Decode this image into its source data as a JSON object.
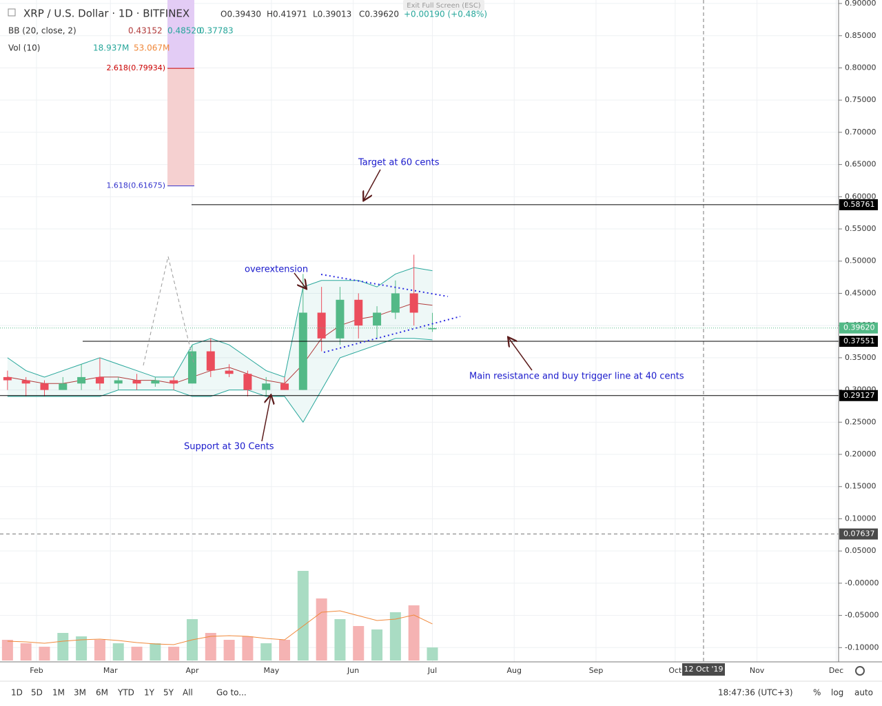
{
  "header": {
    "symbol": "XRP / U.S. Dollar · 1D · BITFINEX",
    "open": "O0.39430",
    "high": "H0.41971",
    "low": "L0.39013",
    "close": "C0.39620",
    "change": "+0.00190 (+0.48%)",
    "bb_name": "BB (20, close, 2)",
    "bb_basis": "0.43152",
    "bb_upper": "0.48520",
    "bb_lower": "0.37783",
    "vol_name": "Vol (10)",
    "vol_value": "18.937M",
    "vol_ma": "53.067M",
    "exit": "Exit Full Screen (ESC)"
  },
  "chart_data": {
    "type": "candlestick",
    "dates": [
      "2019-01-21",
      "2019-01-28",
      "2019-02-04",
      "2019-02-11",
      "2019-02-18",
      "2019-02-25",
      "2019-03-04",
      "2019-03-11",
      "2019-03-18",
      "2019-03-25",
      "2019-04-01",
      "2019-04-08",
      "2019-04-15",
      "2019-04-22",
      "2019-04-29",
      "2019-05-06",
      "2019-05-13",
      "2019-05-20",
      "2019-05-27",
      "2019-06-03",
      "2019-06-10",
      "2019-06-17",
      "2019-06-24",
      "2019-07-01"
    ],
    "open": [
      0.32,
      0.315,
      0.31,
      0.3,
      0.31,
      0.32,
      0.31,
      0.315,
      0.31,
      0.315,
      0.31,
      0.36,
      0.33,
      0.325,
      0.3,
      0.31,
      0.3,
      0.42,
      0.38,
      0.44,
      0.4,
      0.42,
      0.45,
      0.3943
    ],
    "high": [
      0.33,
      0.32,
      0.315,
      0.32,
      0.34,
      0.35,
      0.32,
      0.325,
      0.32,
      0.32,
      0.37,
      0.38,
      0.34,
      0.33,
      0.32,
      0.32,
      0.48,
      0.46,
      0.46,
      0.45,
      0.43,
      0.47,
      0.51,
      0.41971
    ],
    "low": [
      0.3,
      0.29,
      0.29,
      0.3,
      0.3,
      0.3,
      0.3,
      0.3,
      0.305,
      0.3,
      0.31,
      0.32,
      0.32,
      0.29,
      0.29,
      0.3,
      0.3,
      0.36,
      0.37,
      0.38,
      0.38,
      0.41,
      0.4,
      0.39013
    ],
    "close": [
      0.315,
      0.31,
      0.3,
      0.31,
      0.32,
      0.31,
      0.315,
      0.31,
      0.315,
      0.31,
      0.36,
      0.33,
      0.325,
      0.3,
      0.31,
      0.3,
      0.42,
      0.38,
      0.44,
      0.4,
      0.42,
      0.45,
      0.42,
      0.3962
    ],
    "bb_upper": [
      0.35,
      0.33,
      0.32,
      0.33,
      0.34,
      0.35,
      0.34,
      0.33,
      0.32,
      0.32,
      0.37,
      0.38,
      0.37,
      0.35,
      0.33,
      0.32,
      0.46,
      0.47,
      0.47,
      0.47,
      0.46,
      0.48,
      0.49,
      0.4852
    ],
    "bb_middle": [
      0.32,
      0.315,
      0.31,
      0.31,
      0.315,
      0.32,
      0.32,
      0.315,
      0.315,
      0.31,
      0.32,
      0.33,
      0.335,
      0.325,
      0.315,
      0.31,
      0.34,
      0.38,
      0.4,
      0.41,
      0.415,
      0.425,
      0.435,
      0.43152
    ],
    "bb_lower": [
      0.29,
      0.29,
      0.29,
      0.29,
      0.29,
      0.29,
      0.3,
      0.3,
      0.3,
      0.3,
      0.29,
      0.29,
      0.3,
      0.3,
      0.29,
      0.29,
      0.25,
      0.3,
      0.35,
      0.36,
      0.37,
      0.38,
      0.38,
      0.37783
    ],
    "volume": [
      30,
      25,
      20,
      40,
      35,
      30,
      25,
      20,
      25,
      20,
      60,
      40,
      30,
      35,
      25,
      30,
      130,
      90,
      60,
      50,
      45,
      70,
      80,
      18.937
    ],
    "volume_ma": [
      28,
      27,
      25,
      28,
      30,
      31,
      29,
      26,
      24,
      23,
      30,
      35,
      36,
      35,
      32,
      30,
      50,
      70,
      72,
      65,
      58,
      60,
      66,
      53.067
    ],
    "volume_ylim": [
      0,
      300
    ],
    "ylim": [
      -0.1168,
      0.9054
    ],
    "yticks": [
      {
        "value": 0.9,
        "label": "0.90000"
      },
      {
        "value": 0.85,
        "label": "0.85000"
      },
      {
        "value": 0.8,
        "label": "0.80000"
      },
      {
        "value": 0.75,
        "label": "0.75000"
      },
      {
        "value": 0.7,
        "label": "0.70000"
      },
      {
        "value": 0.65,
        "label": "0.65000"
      },
      {
        "value": 0.6,
        "label": "0.60000"
      },
      {
        "value": 0.55,
        "label": "0.55000"
      },
      {
        "value": 0.5,
        "label": "0.50000"
      },
      {
        "value": 0.45,
        "label": "0.45000"
      },
      {
        "value": 0.4,
        "label": "0.40000"
      },
      {
        "value": 0.35,
        "label": "0.35000"
      },
      {
        "value": 0.3,
        "label": "0.30000"
      },
      {
        "value": 0.25,
        "label": "0.25000"
      },
      {
        "value": 0.2,
        "label": "0.20000"
      },
      {
        "value": 0.15,
        "label": "0.15000"
      },
      {
        "value": 0.1,
        "label": "0.10000"
      },
      {
        "value": 0.05,
        "label": "0.05000"
      },
      {
        "value": 0,
        "label": "-0.00000"
      },
      {
        "value": -0.05,
        "label": "-0.05000"
      },
      {
        "value": -0.1,
        "label": "-0.10000"
      }
    ],
    "months": [
      "Feb",
      "Mar",
      "Apr",
      "May",
      "Jun",
      "Jul",
      "Aug",
      "Sep",
      "Oct",
      "Nov",
      "Dec"
    ],
    "levels": [
      {
        "value": 0.58761,
        "label": "0.58761"
      },
      {
        "value": 0.37551,
        "label": "0.37551"
      },
      {
        "value": 0.29127,
        "label": "0.29127"
      }
    ],
    "last_price": {
      "value": 0.3962,
      "label": "0.39620"
    },
    "crosshair": {
      "value": 0.07637,
      "label": "0.07637",
      "date": "12 Oct '19"
    },
    "fib": [
      {
        "value": 0.61675,
        "label": "1.618(0.61675)"
      },
      {
        "value": 0.79934,
        "label": "2.618(0.79934)"
      }
    ],
    "annotations": [
      "Target at 60 cents",
      "overextension",
      "Main resistance and buy trigger line at 40 cents",
      "Support at 30 Cents"
    ],
    "colors": {
      "up": "#53b987",
      "down": "#eb4d5c",
      "band": "#26a69a",
      "basis": "#b03a3a",
      "vol_up": "#a9dcc3",
      "vol_down": "#f5b3b3",
      "vol_ma": "#f0883a"
    }
  },
  "toolbar": {
    "ranges": [
      "1D",
      "5D",
      "1M",
      "3M",
      "6M",
      "YTD",
      "1Y",
      "5Y",
      "All"
    ],
    "goto": "Go to...",
    "time": "18:47:36 (UTC+3)",
    "pct": "%",
    "log": "log",
    "auto": "auto"
  }
}
